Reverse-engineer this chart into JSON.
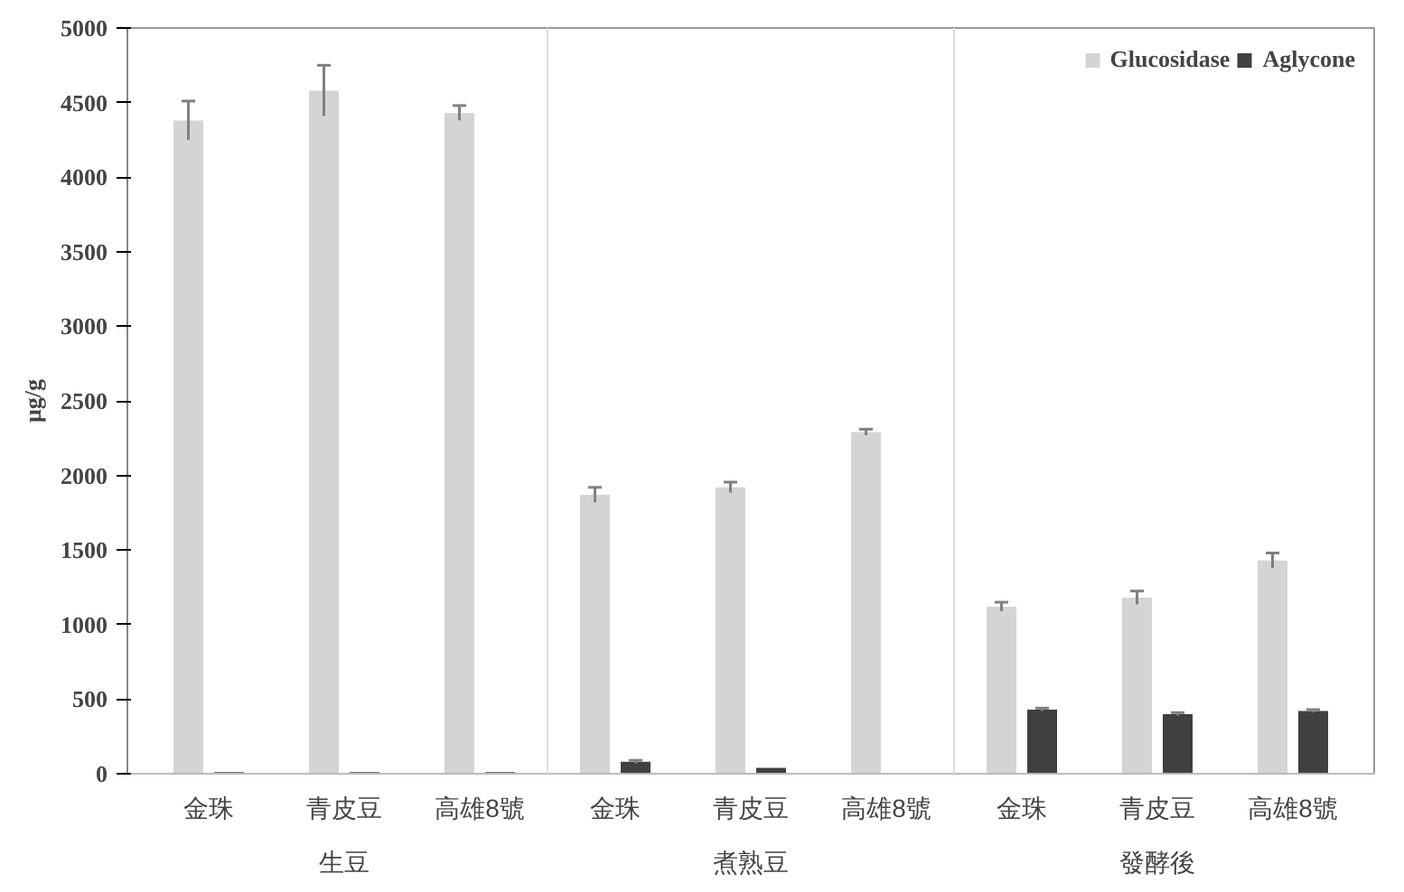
{
  "chart_data": {
    "type": "bar",
    "ylabel": "μg/g",
    "categories": [
      "金珠",
      "青皮豆",
      "高雄8號",
      "金珠",
      "青皮豆",
      "高雄8號",
      "金珠",
      "青皮豆",
      "高雄8號"
    ],
    "annotations": [
      "生豆",
      "煮熟豆",
      "發酵後"
    ],
    "series": [
      {
        "name": "Glucosidase",
        "color": "#d4d4d4",
        "values": [
          4380,
          4580,
          4430,
          1870,
          1920,
          2290,
          1120,
          1180,
          1430
        ],
        "errors": [
          130,
          170,
          50,
          50,
          35,
          20,
          30,
          45,
          50
        ]
      },
      {
        "name": "Aglycone",
        "color": "#404040",
        "values": [
          10,
          10,
          10,
          80,
          40,
          0,
          430,
          400,
          420
        ],
        "errors": [
          null,
          null,
          null,
          10,
          null,
          null,
          10,
          10,
          10
        ]
      }
    ],
    "ylim": [
      0,
      5000
    ],
    "yticks": [
      0,
      500,
      1000,
      1500,
      2000,
      2500,
      3000,
      3500,
      4000,
      4500,
      5000
    ],
    "grid": false,
    "legend": "top right"
  }
}
